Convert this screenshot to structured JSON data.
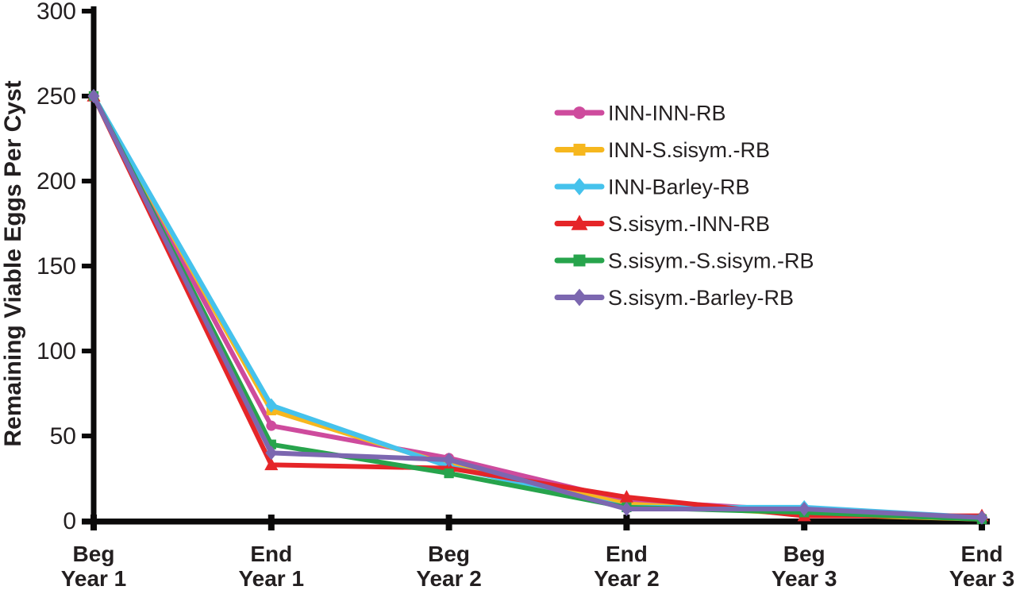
{
  "figure": {
    "background": "#ffffff",
    "text_color": "#231f20",
    "axis_color": "#0b0a0a"
  },
  "chart_data": {
    "type": "line",
    "title": "",
    "xlabel": "",
    "ylabel": "Remaining Viable Eggs Per Cyst",
    "ylim": [
      0,
      300
    ],
    "yticks": [
      0,
      50,
      100,
      150,
      200,
      250,
      300
    ],
    "grid": false,
    "legend_position": "inside-upper-right",
    "categories": [
      "Beg Year 1",
      "End Year 1",
      "Beg Year 2",
      "End Year 2",
      "Beg Year 3",
      "End Year 3"
    ],
    "category_labels": [
      [
        "Beg",
        "Year 1"
      ],
      [
        "End",
        "Year 1"
      ],
      [
        "Beg",
        "Year 2"
      ],
      [
        "End",
        "Year 2"
      ],
      [
        "Beg",
        "Year 3"
      ],
      [
        "End",
        "Year 3"
      ]
    ],
    "series": [
      {
        "name": "INN-INN-RB",
        "color": "#ce4b9d",
        "marker": "circle",
        "values": [
          250,
          56,
          37,
          12,
          6,
          2
        ]
      },
      {
        "name": "INN-S.sisym.-RB",
        "color": "#f6b71e",
        "marker": "square",
        "values": [
          250,
          65,
          33,
          10,
          4,
          1
        ]
      },
      {
        "name": "INN-Barley-RB",
        "color": "#45c2ec",
        "marker": "diamond",
        "values": [
          250,
          68,
          32,
          8,
          8,
          2
        ]
      },
      {
        "name": "S.sisym.-INN-RB",
        "color": "#e52528",
        "marker": "triangle",
        "values": [
          250,
          33,
          31,
          14,
          3,
          3
        ]
      },
      {
        "name": "S.sisym.-S.sisym.-RB",
        "color": "#27a44c",
        "marker": "square",
        "values": [
          250,
          45,
          28,
          8,
          5,
          1
        ]
      },
      {
        "name": "S.sisym.-Barley-RB",
        "color": "#7c67b0",
        "marker": "diamond",
        "values": [
          250,
          40,
          36,
          7,
          7,
          2
        ]
      }
    ]
  }
}
